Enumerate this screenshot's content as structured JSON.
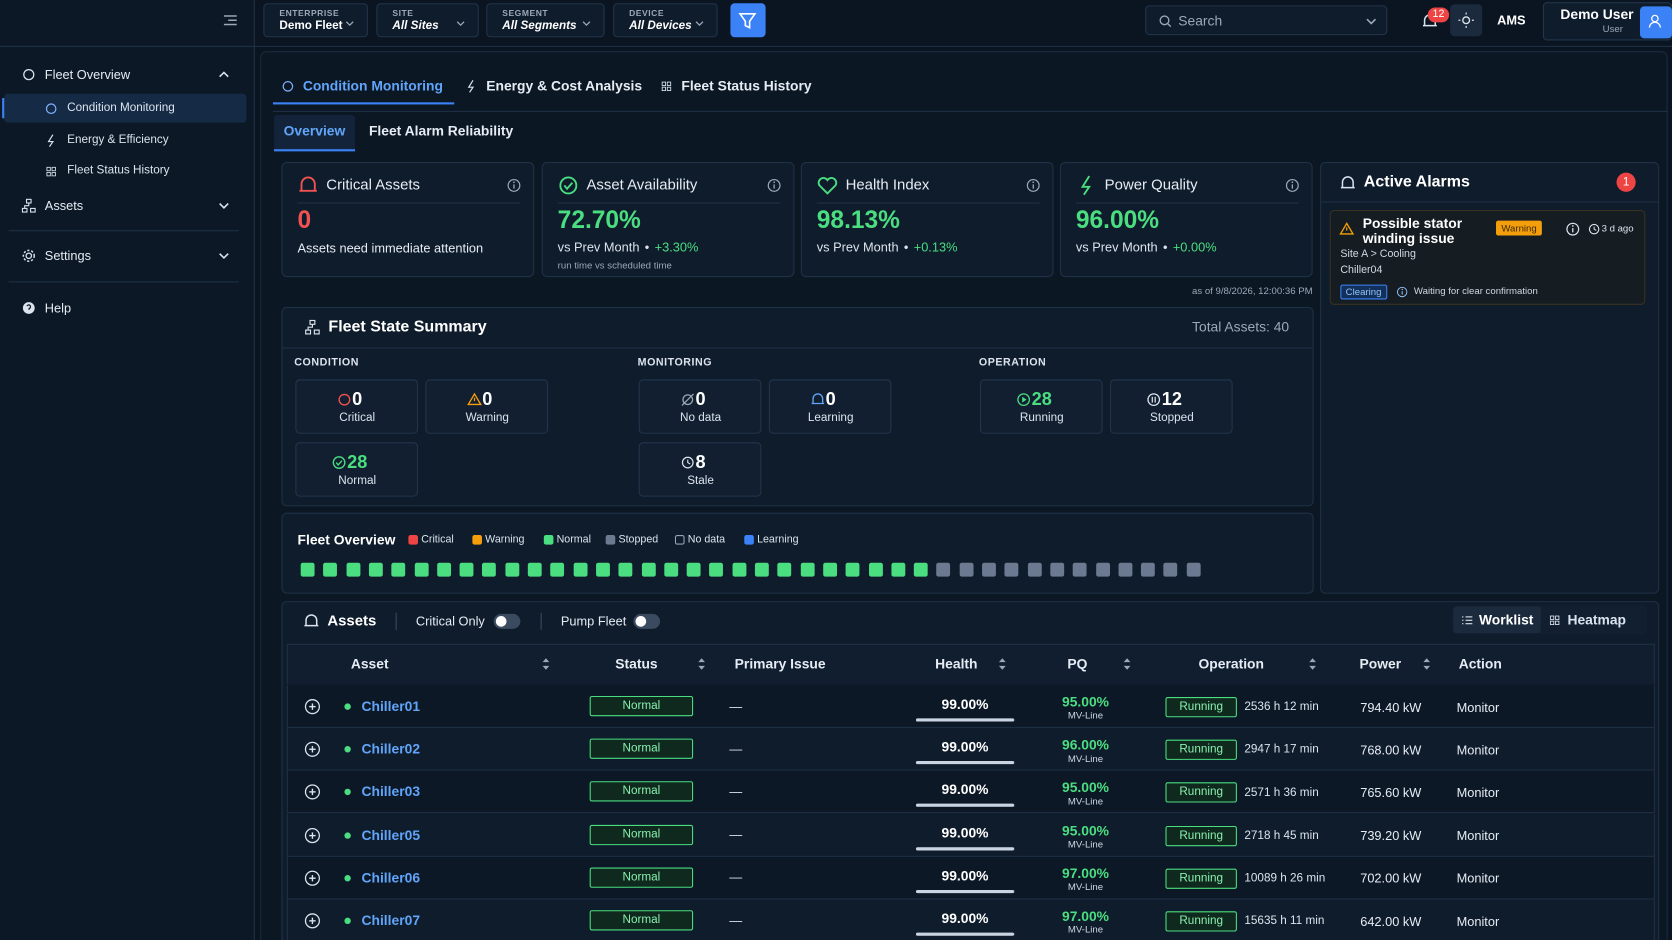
{
  "topbar": {
    "filters": [
      {
        "label": "ENTERPRISE",
        "value": "Demo Fleet"
      },
      {
        "label": "SITE",
        "value": "All Sites"
      },
      {
        "label": "SEGMENT",
        "value": "All Segments"
      },
      {
        "label": "DEVICE",
        "value": "All Devices"
      }
    ],
    "search": "Search",
    "notifications": "12",
    "org": "AMS",
    "user_name": "Demo User",
    "user_role": "User"
  },
  "sidebar": {
    "items": [
      {
        "label": "Fleet Overview",
        "children": [
          "Condition Monitoring",
          "Energy & Efficiency",
          "Fleet Status History"
        ]
      },
      {
        "label": "Assets"
      },
      {
        "label": "Settings"
      },
      {
        "label": "Help"
      }
    ]
  },
  "tabs": [
    "Condition Monitoring",
    "Energy & Cost Analysis",
    "Fleet Status History"
  ],
  "subtabs": [
    "Overview",
    "Fleet Alarm Reliability"
  ],
  "kpis": [
    {
      "title": "Critical Assets",
      "value": "0",
      "note": "Assets need immediate attention"
    },
    {
      "title": "Asset Availability",
      "value": "72.70%",
      "compare": "vs Prev Month",
      "delta": "+3.30%",
      "note": "run time vs scheduled time"
    },
    {
      "title": "Health Index",
      "value": "98.13%",
      "compare": "vs Prev Month",
      "delta": "+0.13%"
    },
    {
      "title": "Power Quality",
      "value": "96.00%",
      "compare": "vs Prev Month",
      "delta": "+0.00%"
    }
  ],
  "as_of": "as of 9/8/2026, 12:00:36 PM",
  "fleet_state": {
    "title": "Fleet State Summary",
    "total": "Total Assets: 40",
    "groups": [
      {
        "title": "CONDITION",
        "items": [
          {
            "count": 0,
            "label": "Critical"
          },
          {
            "count": 0,
            "label": "Warning"
          },
          {
            "count": 28,
            "label": "Normal"
          }
        ]
      },
      {
        "title": "MONITORING",
        "items": [
          {
            "count": 0,
            "label": "No data"
          },
          {
            "count": 0,
            "label": "Learning"
          },
          {
            "count": 8,
            "label": "Stale"
          }
        ]
      },
      {
        "title": "OPERATION",
        "items": [
          {
            "count": 28,
            "label": "Running"
          },
          {
            "count": 12,
            "label": "Stopped"
          }
        ]
      }
    ]
  },
  "fleet_overview": {
    "title": "Fleet Overview",
    "legend": [
      {
        "label": "Critical",
        "color": "#ef4444"
      },
      {
        "label": "Warning",
        "color": "#f59e0b"
      },
      {
        "label": "Normal",
        "color": "#4ade80"
      },
      {
        "label": "Stopped",
        "color": "#6b7a90"
      },
      {
        "label": "No data",
        "color": "#0f1c2b"
      },
      {
        "label": "Learning",
        "color": "#3b82f6"
      }
    ]
  },
  "alarms": {
    "title": "Active Alarms",
    "count": "1",
    "items": [
      {
        "title": "Possible stator winding issue",
        "severity": "Warning",
        "age": "3 d ago",
        "path": "Site A > Cooling",
        "asset": "Chiller04",
        "state": "Clearing",
        "state_note": "Waiting for clear confirmation"
      }
    ]
  },
  "assets": {
    "title": "Assets",
    "toggles": [
      "Critical Only",
      "Pump Fleet"
    ],
    "views": [
      "Worklist",
      "Heatmap"
    ],
    "columns": [
      "Asset",
      "Status",
      "Primary Issue",
      "Health",
      "PQ",
      "Operation",
      "Power",
      "Action"
    ],
    "rows": [
      {
        "asset": "Chiller01",
        "status": "Normal",
        "issue": "—",
        "health": "99.00%",
        "pq": "95.00%",
        "pq_type": "MV-Line",
        "operation": "Running",
        "runtime": "2536 h 12 min",
        "power": "794.40 kW",
        "action": "Monitor"
      },
      {
        "asset": "Chiller02",
        "status": "Normal",
        "issue": "—",
        "health": "99.00%",
        "pq": "96.00%",
        "pq_type": "MV-Line",
        "operation": "Running",
        "runtime": "2947 h 17 min",
        "power": "768.00 kW",
        "action": "Monitor"
      },
      {
        "asset": "Chiller03",
        "status": "Normal",
        "issue": "—",
        "health": "99.00%",
        "pq": "95.00%",
        "pq_type": "MV-Line",
        "operation": "Running",
        "runtime": "2571 h 36 min",
        "power": "765.60 kW",
        "action": "Monitor"
      },
      {
        "asset": "Chiller05",
        "status": "Normal",
        "issue": "—",
        "health": "99.00%",
        "pq": "95.00%",
        "pq_type": "MV-Line",
        "operation": "Running",
        "runtime": "2718 h 45 min",
        "power": "739.20 kW",
        "action": "Monitor"
      },
      {
        "asset": "Chiller06",
        "status": "Normal",
        "issue": "—",
        "health": "99.00%",
        "pq": "97.00%",
        "pq_type": "MV-Line",
        "operation": "Running",
        "runtime": "10089 h 26 min",
        "power": "702.00 kW",
        "action": "Monitor"
      },
      {
        "asset": "Chiller07",
        "status": "Normal",
        "issue": "—",
        "health": "99.00%",
        "pq": "97.00%",
        "pq_type": "MV-Line",
        "operation": "Running",
        "runtime": "15635 h 11 min",
        "power": "642.00 kW",
        "action": "Monitor"
      }
    ]
  }
}
